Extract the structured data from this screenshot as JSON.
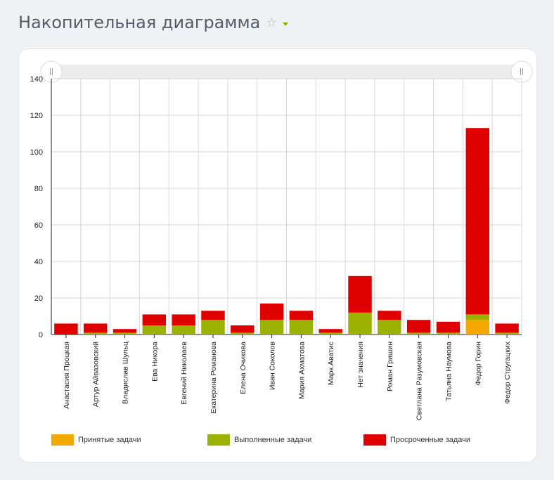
{
  "header": {
    "title": "Накопительная диаграмма",
    "star_icon": "star-icon",
    "menu_icon": "chevron-down-icon"
  },
  "colors": {
    "accepted": "#f5a800",
    "done": "#9bb300",
    "overdue": "#e00000"
  },
  "chart_data": {
    "type": "bar",
    "stacked": true,
    "ylim": [
      0,
      140
    ],
    "yticks": [
      0,
      20,
      40,
      60,
      80,
      100,
      120,
      140
    ],
    "grid": true,
    "legend_position": "bottom",
    "categories": [
      "Анастасия Процкая",
      "Артур Айвазовский",
      "Владислав Шульц",
      "Ева Никора",
      "Евгений Николаев",
      "Екатерина Романова",
      "Елена Очикова",
      "Иван Соколов",
      "Мария Ахматова",
      "Марк Аватис",
      "Нет значения",
      "Роман Гришин",
      "Светлана Разумовская",
      "Татьяна Наумова",
      "Федор Горин",
      "Федор Стругацких"
    ],
    "series": [
      {
        "name": "Принятые задачи",
        "color": "#f5a800",
        "values": [
          0,
          0,
          0,
          0,
          0,
          0,
          0,
          0,
          0,
          0,
          0,
          0,
          0,
          0,
          8,
          0
        ]
      },
      {
        "name": "Выполненные задачи",
        "color": "#9bb300",
        "values": [
          0,
          1,
          1,
          5,
          5,
          8,
          1,
          8,
          8,
          1,
          12,
          8,
          1,
          1,
          3,
          1
        ]
      },
      {
        "name": "Просроченные задачи",
        "color": "#e00000",
        "values": [
          6,
          5,
          2,
          6,
          6,
          5,
          4,
          9,
          5,
          2,
          20,
          5,
          7,
          6,
          102,
          5
        ]
      }
    ]
  }
}
